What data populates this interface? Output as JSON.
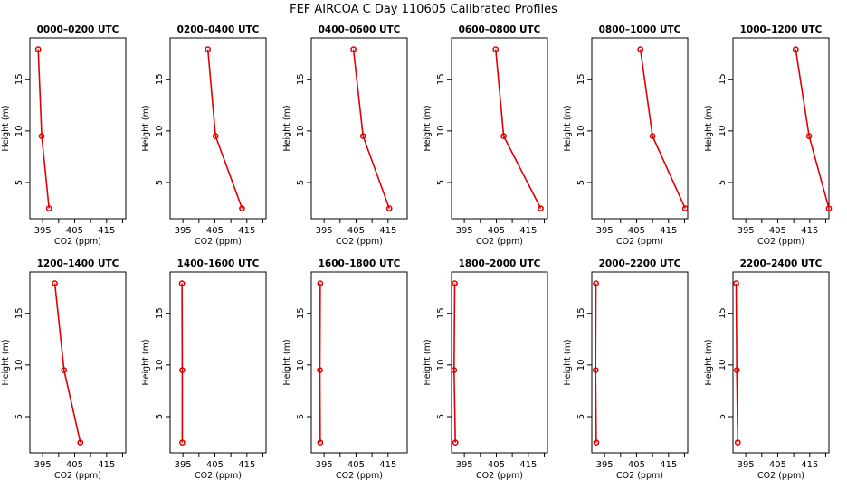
{
  "title": "FEF AIRCOA C  Day 110605  Calibrated Profiles",
  "xlabel": "CO2 (ppm)",
  "ylabel": "Height (m)",
  "colors": {
    "series": "#e00000",
    "axes": "#000000",
    "background": "#ffffff"
  },
  "chart_data": [
    {
      "type": "line",
      "title": "0000–0200 UTC",
      "xlim": [
        391,
        421
      ],
      "ylim": [
        1.5,
        19
      ],
      "xticks": [
        395,
        405,
        415
      ],
      "yticks": [
        5,
        10,
        15
      ],
      "series": [
        {
          "name": "CO2 profile",
          "x": [
            393.6,
            394.7,
            397.0
          ],
          "y": [
            17.9,
            9.5,
            2.5
          ]
        }
      ]
    },
    {
      "type": "line",
      "title": "0200–0400 UTC",
      "xlim": [
        391,
        421
      ],
      "ylim": [
        1.5,
        19
      ],
      "xticks": [
        395,
        405,
        415
      ],
      "yticks": [
        5,
        10,
        15
      ],
      "series": [
        {
          "name": "CO2 profile",
          "x": [
            402.8,
            405.2,
            413.5
          ],
          "y": [
            17.9,
            9.5,
            2.5
          ]
        }
      ]
    },
    {
      "type": "line",
      "title": "0400–0600 UTC",
      "xlim": [
        391,
        421
      ],
      "ylim": [
        1.5,
        19
      ],
      "xticks": [
        395,
        405,
        415
      ],
      "yticks": [
        5,
        10,
        15
      ],
      "series": [
        {
          "name": "CO2 profile",
          "x": [
            404.2,
            407.2,
            415.4
          ],
          "y": [
            17.9,
            9.5,
            2.5
          ]
        }
      ]
    },
    {
      "type": "line",
      "title": "0600–0800 UTC",
      "xlim": [
        391,
        421
      ],
      "ylim": [
        1.5,
        19
      ],
      "xticks": [
        395,
        405,
        415
      ],
      "yticks": [
        5,
        10,
        15
      ],
      "series": [
        {
          "name": "CO2 profile",
          "x": [
            404.8,
            407.3,
            418.9
          ],
          "y": [
            17.9,
            9.5,
            2.5
          ]
        }
      ]
    },
    {
      "type": "line",
      "title": "0800–1000 UTC",
      "xlim": [
        391,
        421
      ],
      "ylim": [
        1.5,
        19
      ],
      "xticks": [
        395,
        405,
        415
      ],
      "yticks": [
        5,
        10,
        15
      ],
      "series": [
        {
          "name": "CO2 profile",
          "x": [
            406.2,
            410.0,
            420.2
          ],
          "y": [
            17.9,
            9.5,
            2.5
          ]
        }
      ]
    },
    {
      "type": "line",
      "title": "1000–1200 UTC",
      "xlim": [
        391,
        421
      ],
      "ylim": [
        1.5,
        19
      ],
      "xticks": [
        395,
        405,
        415
      ],
      "yticks": [
        5,
        10,
        15
      ],
      "series": [
        {
          "name": "CO2 profile",
          "x": [
            410.6,
            414.8,
            421.0
          ],
          "y": [
            17.9,
            9.5,
            2.5
          ]
        }
      ]
    },
    {
      "type": "line",
      "title": "1200–1400 UTC",
      "xlim": [
        391,
        421
      ],
      "ylim": [
        1.5,
        19
      ],
      "xticks": [
        395,
        405,
        415
      ],
      "yticks": [
        5,
        10,
        15
      ],
      "series": [
        {
          "name": "CO2 profile",
          "x": [
            398.8,
            401.7,
            406.8
          ],
          "y": [
            17.9,
            9.5,
            2.5
          ]
        }
      ]
    },
    {
      "type": "line",
      "title": "1400–1600 UTC",
      "xlim": [
        391,
        421
      ],
      "ylim": [
        1.5,
        19
      ],
      "xticks": [
        395,
        405,
        415
      ],
      "yticks": [
        5,
        10,
        15
      ],
      "series": [
        {
          "name": "CO2 profile",
          "x": [
            394.7,
            394.8,
            394.8
          ],
          "y": [
            17.9,
            9.5,
            2.5
          ]
        }
      ]
    },
    {
      "type": "line",
      "title": "1600–1800 UTC",
      "xlim": [
        391,
        421
      ],
      "ylim": [
        1.5,
        19
      ],
      "xticks": [
        395,
        405,
        415
      ],
      "yticks": [
        5,
        10,
        15
      ],
      "series": [
        {
          "name": "CO2 profile",
          "x": [
            393.8,
            393.7,
            393.8
          ],
          "y": [
            17.9,
            9.5,
            2.5
          ]
        }
      ]
    },
    {
      "type": "line",
      "title": "1800–2000 UTC",
      "xlim": [
        391,
        421
      ],
      "ylim": [
        1.5,
        19
      ],
      "xticks": [
        395,
        405,
        415
      ],
      "yticks": [
        5,
        10,
        15
      ],
      "series": [
        {
          "name": "CO2 profile",
          "x": [
            392.0,
            391.8,
            392.2
          ],
          "y": [
            17.9,
            9.5,
            2.5
          ]
        }
      ]
    },
    {
      "type": "line",
      "title": "2000–2200 UTC",
      "xlim": [
        391,
        421
      ],
      "ylim": [
        1.5,
        19
      ],
      "xticks": [
        395,
        405,
        415
      ],
      "yticks": [
        5,
        10,
        15
      ],
      "series": [
        {
          "name": "CO2 profile",
          "x": [
            392.3,
            392.2,
            392.4
          ],
          "y": [
            17.9,
            9.5,
            2.5
          ]
        }
      ]
    },
    {
      "type": "line",
      "title": "2200–2400 UTC",
      "xlim": [
        391,
        421
      ],
      "ylim": [
        1.5,
        19
      ],
      "xticks": [
        395,
        405,
        415
      ],
      "yticks": [
        5,
        10,
        15
      ],
      "series": [
        {
          "name": "CO2 profile",
          "x": [
            392.0,
            392.2,
            392.5
          ],
          "y": [
            17.9,
            9.5,
            2.5
          ]
        }
      ]
    }
  ]
}
